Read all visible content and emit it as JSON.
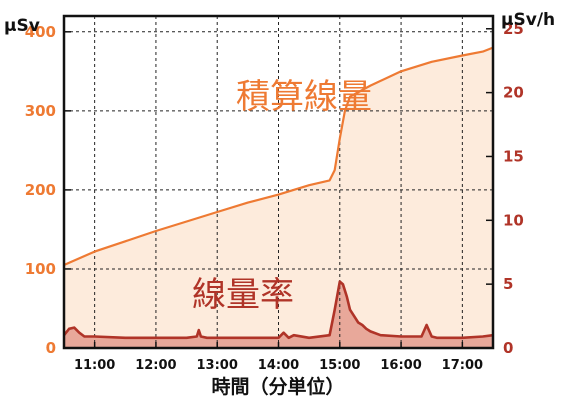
{
  "chart_data": {
    "type": "area",
    "xlabel": "時間（分単位）",
    "x_ticks": [
      "11:00",
      "12:00",
      "13:00",
      "14:00",
      "15:00",
      "16:00",
      "17:00"
    ],
    "xlim": [
      "10:30",
      "17:30"
    ],
    "y_left": {
      "unit": "μSv",
      "ylim": [
        0,
        420
      ],
      "ticks": [
        0,
        100,
        200,
        300,
        400
      ],
      "color": "#ee7a33"
    },
    "y_right": {
      "unit": "μSv/h",
      "ylim": [
        0,
        26
      ],
      "ticks": [
        0,
        5,
        10,
        15,
        20,
        25
      ],
      "color": "#b03428"
    },
    "grid": true,
    "series": [
      {
        "name": "積算線量",
        "axis": "left",
        "color": "#ee7a33",
        "fill": "#fdebdc",
        "x": [
          "10:30",
          "11:00",
          "11:30",
          "12:00",
          "12:30",
          "13:00",
          "13:30",
          "14:00",
          "14:30",
          "14:50",
          "14:55",
          "15:00",
          "15:05",
          "15:10",
          "15:20",
          "15:30",
          "16:00",
          "16:30",
          "17:00",
          "17:20",
          "17:30"
        ],
        "y": [
          105,
          122,
          135,
          148,
          160,
          172,
          184,
          194,
          206,
          212,
          225,
          265,
          300,
          318,
          325,
          332,
          350,
          362,
          370,
          375,
          380
        ]
      },
      {
        "name": "線量率",
        "axis": "right",
        "color": "#b03428",
        "fill": "#e8a89a",
        "x": [
          "10:30",
          "10:35",
          "10:40",
          "10:45",
          "10:50",
          "11:00",
          "11:30",
          "12:00",
          "12:30",
          "12:40",
          "12:42",
          "12:44",
          "12:50",
          "13:00",
          "13:30",
          "14:00",
          "14:05",
          "14:10",
          "14:15",
          "14:30",
          "14:50",
          "14:55",
          "15:00",
          "15:03",
          "15:07",
          "15:10",
          "15:14",
          "15:18",
          "15:22",
          "15:26",
          "15:30",
          "15:40",
          "16:00",
          "16:20",
          "16:25",
          "16:30",
          "16:35",
          "16:40",
          "17:00",
          "17:20",
          "17:30"
        ],
        "y": [
          1.0,
          1.5,
          1.6,
          1.2,
          0.9,
          0.9,
          0.8,
          0.8,
          0.8,
          0.9,
          1.4,
          0.9,
          0.8,
          0.8,
          0.8,
          0.8,
          1.2,
          0.8,
          1.0,
          0.8,
          1.0,
          3.0,
          5.2,
          5.0,
          4.0,
          3.0,
          2.5,
          2.0,
          1.8,
          1.5,
          1.3,
          1.0,
          0.9,
          0.9,
          1.8,
          0.9,
          0.8,
          0.8,
          0.8,
          0.9,
          1.0
        ]
      }
    ],
    "annotations": [
      {
        "text": "積算線量",
        "series": "積算線量"
      },
      {
        "text": "線量率",
        "series": "線量率"
      }
    ]
  }
}
